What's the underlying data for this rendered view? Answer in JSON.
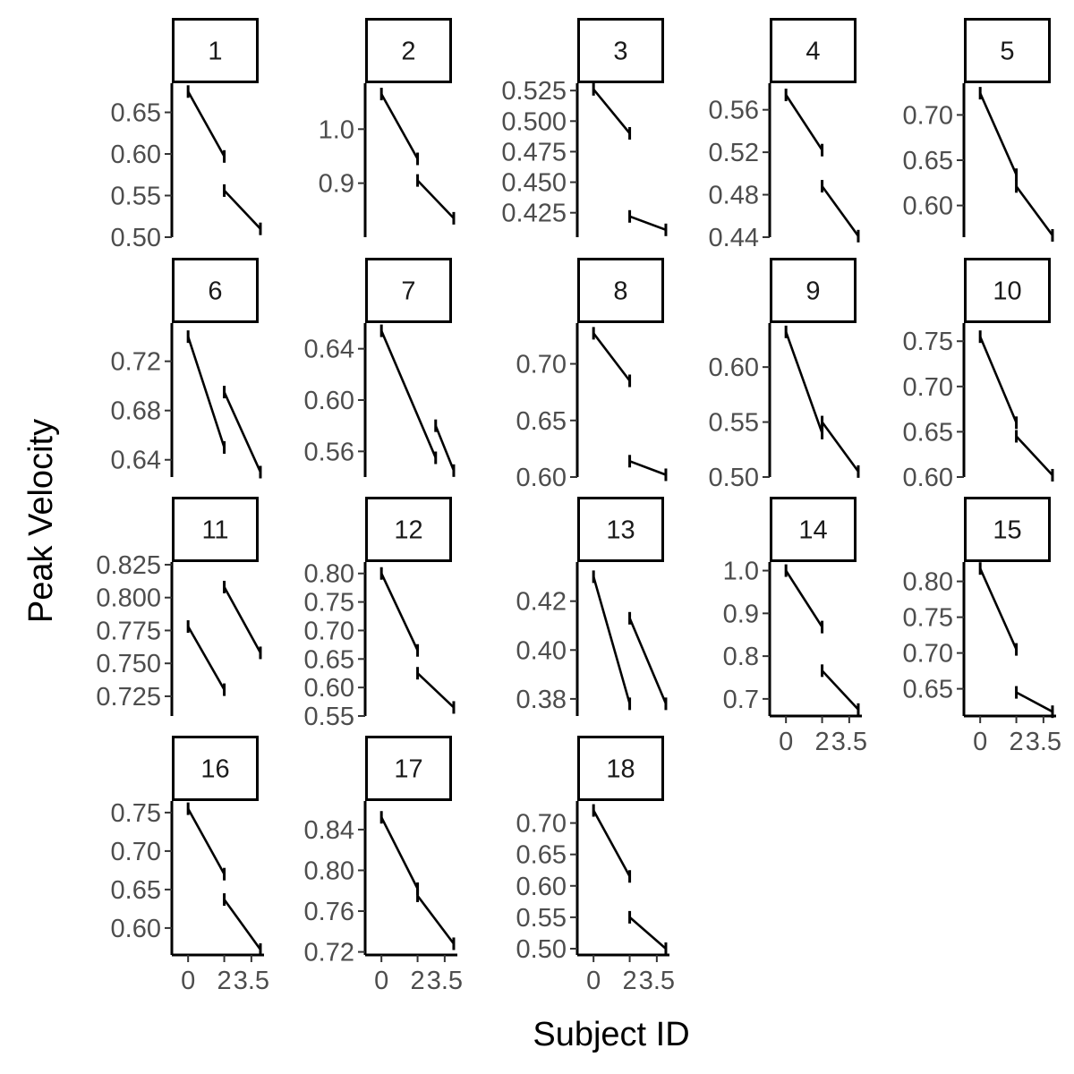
{
  "chart_data": {
    "type": "line",
    "xlabel": "Subject ID",
    "ylabel": "Peak Velocity",
    "x_ticks": [
      0,
      2,
      3.5
    ],
    "x_tick_labels": [
      "0",
      "2",
      "3.5"
    ],
    "xlim": [
      -0.9,
      4.2
    ],
    "grid": false,
    "panels": [
      {
        "label": "1",
        "y_ticks": [
          0.5,
          0.55,
          0.6,
          0.65
        ],
        "y_tick_labels": [
          "0.50",
          "0.55",
          "0.60",
          "0.65"
        ],
        "ylim": [
          0.5,
          0.685
        ],
        "segments": [
          [
            [
              0,
              0.675
            ],
            [
              2,
              0.597
            ]
          ],
          [
            [
              2,
              0.556
            ],
            [
              4,
              0.51
            ]
          ]
        ]
      },
      {
        "label": "2",
        "y_ticks": [
          0.9,
          1.0
        ],
        "y_tick_labels": [
          "0.9",
          "1.0"
        ],
        "ylim": [
          0.8,
          1.085
        ],
        "segments": [
          [
            [
              0,
              1.065
            ],
            [
              2,
              0.945
            ]
          ],
          [
            [
              2,
              0.905
            ],
            [
              4,
              0.835
            ]
          ]
        ]
      },
      {
        "label": "3",
        "y_ticks": [
          0.425,
          0.45,
          0.475,
          0.5,
          0.525
        ],
        "y_tick_labels": [
          "0.425",
          "0.450",
          "0.475",
          "0.500",
          "0.525"
        ],
        "ylim": [
          0.405,
          0.531
        ],
        "segments": [
          [
            [
              0,
              0.526
            ],
            [
              2,
              0.49
            ]
          ],
          [
            [
              2,
              0.422
            ],
            [
              4,
              0.411
            ]
          ]
        ]
      },
      {
        "label": "4",
        "y_ticks": [
          0.44,
          0.48,
          0.52,
          0.56
        ],
        "y_tick_labels": [
          "0.44",
          "0.48",
          "0.52",
          "0.56"
        ],
        "ylim": [
          0.44,
          0.585
        ],
        "segments": [
          [
            [
              0,
              0.574
            ],
            [
              2,
              0.522
            ]
          ],
          [
            [
              2,
              0.488
            ],
            [
              4,
              0.441
            ]
          ]
        ]
      },
      {
        "label": "5",
        "y_ticks": [
          0.6,
          0.65,
          0.7
        ],
        "y_tick_labels": [
          "0.60",
          "0.65",
          "0.70"
        ],
        "ylim": [
          0.565,
          0.735
        ],
        "segments": [
          [
            [
              0,
              0.724
            ],
            [
              2,
              0.634
            ]
          ],
          [
            [
              2,
              0.621
            ],
            [
              4,
              0.567
            ]
          ]
        ]
      },
      {
        "label": "6",
        "y_ticks": [
          0.64,
          0.68,
          0.72
        ],
        "y_tick_labels": [
          "0.64",
          "0.68",
          "0.72"
        ],
        "ylim": [
          0.626,
          0.751
        ],
        "segments": [
          [
            [
              0,
              0.74
            ],
            [
              2,
              0.65
            ]
          ],
          [
            [
              2,
              0.695
            ],
            [
              4,
              0.63
            ]
          ]
        ]
      },
      {
        "label": "7",
        "y_ticks": [
          0.56,
          0.6,
          0.64
        ],
        "y_tick_labels": [
          "0.56",
          "0.60",
          "0.64"
        ],
        "ylim": [
          0.54,
          0.66
        ],
        "segments": [
          [
            [
              0,
              0.654
            ],
            [
              3,
              0.555
            ]
          ],
          [
            [
              3,
              0.58
            ],
            [
              4,
              0.545
            ]
          ]
        ]
      },
      {
        "label": "8",
        "y_ticks": [
          0.6,
          0.65,
          0.7
        ],
        "y_tick_labels": [
          "0.60",
          "0.65",
          "0.70"
        ],
        "ylim": [
          0.6,
          0.736
        ],
        "segments": [
          [
            [
              0,
              0.727
            ],
            [
              2,
              0.685
            ]
          ],
          [
            [
              2,
              0.614
            ],
            [
              4,
              0.602
            ]
          ]
        ]
      },
      {
        "label": "9",
        "y_ticks": [
          0.5,
          0.55,
          0.6
        ],
        "y_tick_labels": [
          "0.50",
          "0.55",
          "0.60"
        ],
        "ylim": [
          0.5,
          0.64
        ],
        "segments": [
          [
            [
              0,
              0.632
            ],
            [
              2,
              0.54
            ]
          ],
          [
            [
              2,
              0.55
            ],
            [
              4,
              0.505
            ]
          ]
        ]
      },
      {
        "label": "10",
        "y_ticks": [
          0.6,
          0.65,
          0.7,
          0.75
        ],
        "y_tick_labels": [
          "0.60",
          "0.65",
          "0.70",
          "0.75"
        ],
        "ylim": [
          0.6,
          0.77
        ],
        "segments": [
          [
            [
              0,
              0.755
            ],
            [
              2,
              0.66
            ]
          ],
          [
            [
              2,
              0.645
            ],
            [
              4,
              0.602
            ]
          ]
        ]
      },
      {
        "label": "11",
        "y_ticks": [
          0.725,
          0.75,
          0.775,
          0.8,
          0.825
        ],
        "y_tick_labels": [
          "0.725",
          "0.750",
          "0.775",
          "0.800",
          "0.825"
        ],
        "ylim": [
          0.71,
          0.827
        ],
        "segments": [
          [
            [
              0,
              0.778
            ],
            [
              2,
              0.73
            ]
          ],
          [
            [
              2,
              0.808
            ],
            [
              4,
              0.758
            ]
          ]
        ]
      },
      {
        "label": "12",
        "y_ticks": [
          0.55,
          0.6,
          0.65,
          0.7,
          0.75,
          0.8
        ],
        "y_tick_labels": [
          "0.55",
          "0.60",
          "0.65",
          "0.70",
          "0.75",
          "0.80"
        ],
        "ylim": [
          0.55,
          0.82
        ],
        "segments": [
          [
            [
              0,
              0.8
            ],
            [
              2,
              0.665
            ]
          ],
          [
            [
              2,
              0.625
            ],
            [
              4,
              0.565
            ]
          ]
        ]
      },
      {
        "label": "13",
        "y_ticks": [
          0.38,
          0.4,
          0.42
        ],
        "y_tick_labels": [
          "0.38",
          "0.40",
          "0.42"
        ],
        "ylim": [
          0.373,
          0.436
        ],
        "segments": [
          [
            [
              0,
              0.43
            ],
            [
              2,
              0.378
            ]
          ],
          [
            [
              2,
              0.413
            ],
            [
              4,
              0.378
            ]
          ]
        ]
      },
      {
        "label": "14",
        "y_ticks": [
          0.7,
          0.8,
          0.9,
          1.0
        ],
        "y_tick_labels": [
          "0.7",
          "0.8",
          "0.9",
          "1.0"
        ],
        "ylim": [
          0.66,
          1.02
        ],
        "segments": [
          [
            [
              0,
              1.0
            ],
            [
              2,
              0.868
            ]
          ],
          [
            [
              2,
              0.766
            ],
            [
              4,
              0.675
            ]
          ]
        ]
      },
      {
        "label": "15",
        "y_ticks": [
          0.65,
          0.7,
          0.75,
          0.8
        ],
        "y_tick_labels": [
          "0.65",
          "0.70",
          "0.75",
          "0.80"
        ],
        "ylim": [
          0.612,
          0.827
        ],
        "segments": [
          [
            [
              0,
              0.818
            ],
            [
              2,
              0.705
            ]
          ],
          [
            [
              2,
              0.645
            ],
            [
              4,
              0.618
            ]
          ]
        ]
      },
      {
        "label": "16",
        "y_ticks": [
          0.6,
          0.65,
          0.7,
          0.75
        ],
        "y_tick_labels": [
          "0.60",
          "0.65",
          "0.70",
          "0.75"
        ],
        "ylim": [
          0.565,
          0.765
        ],
        "segments": [
          [
            [
              0,
              0.755
            ],
            [
              2,
              0.67
            ]
          ],
          [
            [
              2,
              0.637
            ],
            [
              4,
              0.572
            ]
          ]
        ]
      },
      {
        "label": "17",
        "y_ticks": [
          0.72,
          0.76,
          0.8,
          0.84
        ],
        "y_tick_labels": [
          "0.72",
          "0.76",
          "0.80",
          "0.84"
        ],
        "ylim": [
          0.717,
          0.868
        ],
        "segments": [
          [
            [
              0,
              0.852
            ],
            [
              2,
              0.782
            ]
          ],
          [
            [
              2,
              0.775
            ],
            [
              4,
              0.728
            ]
          ]
        ]
      },
      {
        "label": "18",
        "y_ticks": [
          0.5,
          0.55,
          0.6,
          0.65,
          0.7
        ],
        "y_tick_labels": [
          "0.50",
          "0.55",
          "0.60",
          "0.65",
          "0.70"
        ],
        "ylim": [
          0.49,
          0.735
        ],
        "segments": [
          [
            [
              0,
              0.72
            ],
            [
              2,
              0.615
            ]
          ],
          [
            [
              2,
              0.55
            ],
            [
              4,
              0.5
            ]
          ]
        ]
      }
    ]
  }
}
